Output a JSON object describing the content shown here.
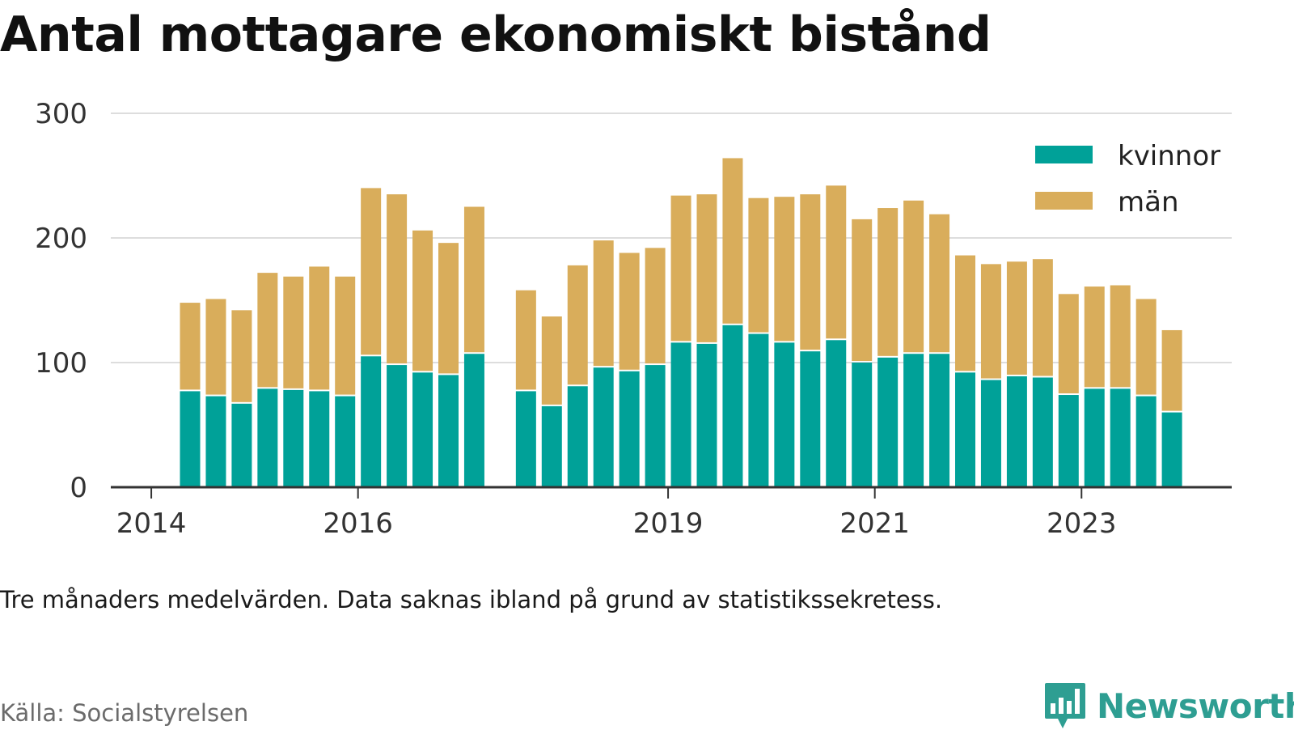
{
  "title": "Antal mottagare ekonomiskt bistånd",
  "note": "Tre månaders medelvärden. Data saknas ibland på grund av statistikssekretess.",
  "source": "Källa: Socialstyrelsen",
  "logo": {
    "brand": "Newsworthy",
    "icon": "newsworthy-bar-chart-icon"
  },
  "colors": {
    "kvinnor": "#00a198",
    "man": "#d9ad5b",
    "grid": "#dddddd",
    "axis": "#333333",
    "brand": "#2e9e92"
  },
  "chart_data": {
    "type": "bar",
    "stacked": true,
    "title": "Antal mottagare ekonomiskt bistånd",
    "xlabel": "",
    "ylabel": "",
    "ylim": [
      0,
      300
    ],
    "y_ticks": [
      0,
      100,
      200,
      300
    ],
    "y_tick_labels": [
      "0",
      "100",
      "200",
      "300"
    ],
    "grid": true,
    "legend_position": "top-right",
    "x_ticks": [
      {
        "label": "2014",
        "year": 2014
      },
      {
        "label": "2016",
        "year": 2016
      },
      {
        "label": "2019",
        "year": 2019
      },
      {
        "label": "2021",
        "year": 2021
      },
      {
        "label": "2023",
        "year": 2023
      }
    ],
    "x": [
      "2014-Q2",
      "2014-Q3",
      "2014-Q4",
      "2015-Q1",
      "2015-Q2",
      "2015-Q3",
      "2015-Q4",
      "2016-Q1",
      "2016-Q2",
      "2016-Q3",
      "2016-Q4",
      "2017-Q1",
      "2017-Q2",
      "2017-Q3",
      "2017-Q4",
      "2018-Q1",
      "2018-Q2",
      "2018-Q3",
      "2018-Q4",
      "2019-Q1",
      "2019-Q2",
      "2019-Q3",
      "2019-Q4",
      "2020-Q1",
      "2020-Q2",
      "2020-Q3",
      "2020-Q4",
      "2021-Q1",
      "2021-Q2",
      "2021-Q3",
      "2021-Q4",
      "2022-Q1",
      "2022-Q2",
      "2022-Q3",
      "2022-Q4",
      "2023-Q1",
      "2023-Q2",
      "2023-Q3",
      "2023-Q4",
      "2024-Q1"
    ],
    "series": [
      {
        "name": "kvinnor",
        "color": "#00a198",
        "values": [
          77,
          73,
          67,
          79,
          78,
          77,
          73,
          105,
          98,
          92,
          90,
          107,
          null,
          77,
          65,
          81,
          96,
          93,
          98,
          116,
          115,
          130,
          123,
          116,
          109,
          118,
          100,
          104,
          107,
          107,
          92,
          86,
          89,
          88,
          74,
          79,
          79,
          73,
          60,
          null
        ]
      },
      {
        "name": "män",
        "color": "#d9ad5b",
        "values": [
          71,
          78,
          75,
          93,
          91,
          100,
          96,
          135,
          137,
          114,
          106,
          118,
          null,
          81,
          72,
          97,
          102,
          95,
          94,
          118,
          120,
          134,
          109,
          117,
          126,
          124,
          115,
          120,
          123,
          112,
          94,
          93,
          92,
          95,
          81,
          82,
          83,
          78,
          66,
          null
        ]
      }
    ]
  }
}
